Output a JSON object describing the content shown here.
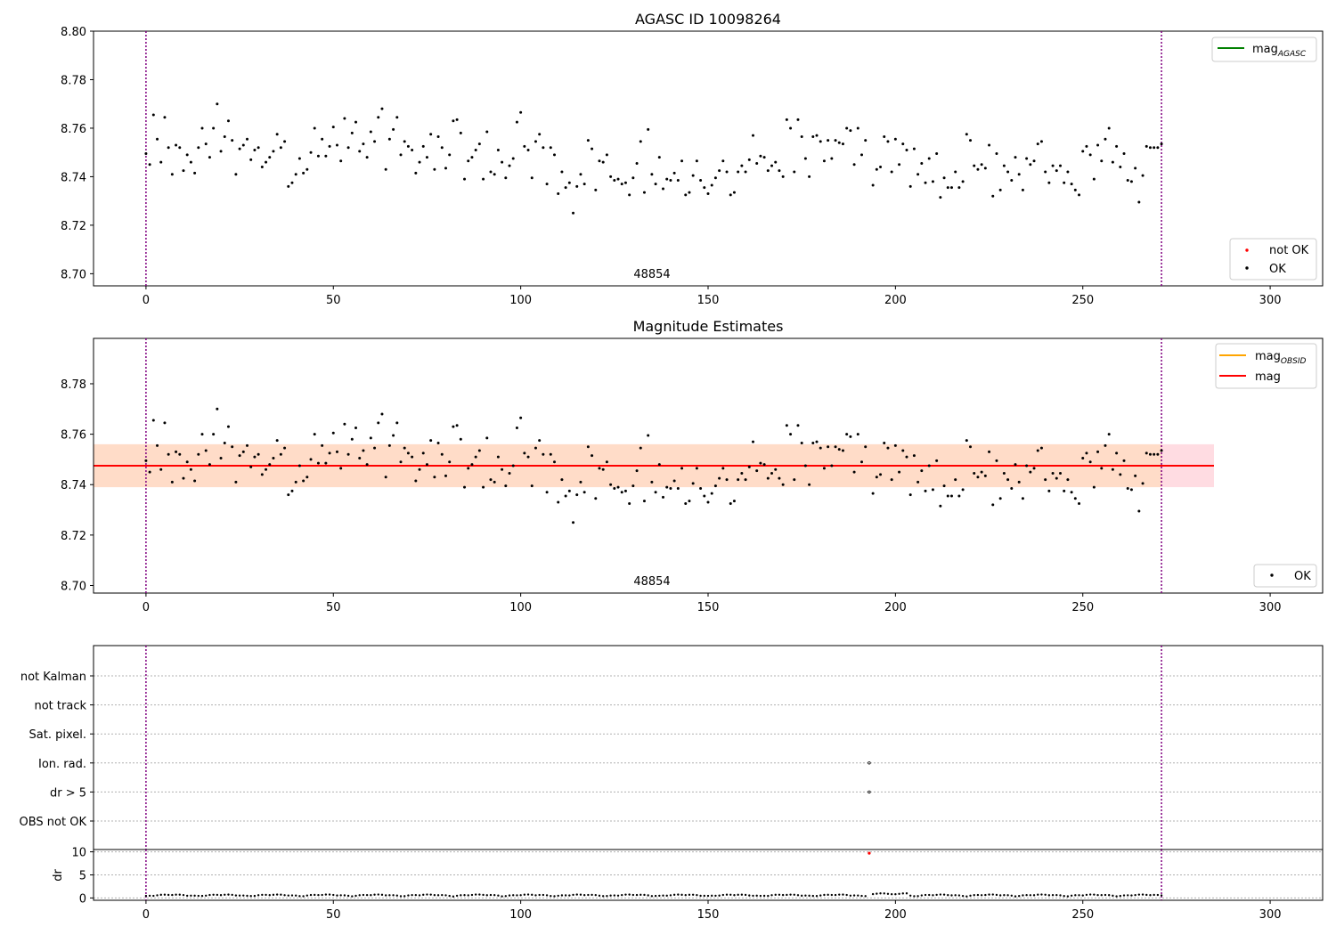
{
  "chart_data": [
    {
      "type": "scatter",
      "title": "AGASC ID 10098264",
      "annotation": "48854",
      "xlim": [
        -14,
        314
      ],
      "ylim": [
        8.695,
        8.8
      ],
      "xticks": [
        0,
        50,
        100,
        150,
        200,
        250,
        300
      ],
      "yticks": [
        8.7,
        8.72,
        8.74,
        8.76,
        8.78,
        8.8
      ],
      "ytick_labels": [
        "8.70",
        "8.72",
        "8.74",
        "8.76",
        "8.78",
        "8.80"
      ],
      "vlines": [
        0,
        271
      ],
      "legend_lines": [
        {
          "label": "mag",
          "sub": "AGASC",
          "color": "#008000"
        }
      ],
      "legend_points": [
        {
          "label": "not OK",
          "color": "#ff0000"
        },
        {
          "label": "OK",
          "color": "#000000"
        }
      ],
      "series": "mag_points",
      "grid": false
    },
    {
      "type": "scatter",
      "title": "Magnitude Estimates",
      "annotation": "48854",
      "xlim": [
        -14,
        314
      ],
      "ylim": [
        8.697,
        8.798
      ],
      "xticks": [
        0,
        50,
        100,
        150,
        200,
        250,
        300
      ],
      "yticks": [
        8.7,
        8.72,
        8.74,
        8.76,
        8.78
      ],
      "ytick_labels": [
        "8.70",
        "8.72",
        "8.74",
        "8.76",
        "8.78"
      ],
      "vlines": [
        0,
        271
      ],
      "mean_mag": 8.7475,
      "band": [
        8.739,
        8.756
      ],
      "band_x": [
        -14,
        285
      ],
      "legend_lines": [
        {
          "label": "mag",
          "sub": "OBSID",
          "color": "#ffa500"
        },
        {
          "label": "mag",
          "sub": "",
          "color": "#ff0000"
        }
      ],
      "legend_points": [
        {
          "label": "OK",
          "color": "#000000"
        }
      ],
      "series": "mag_points",
      "grid": false
    },
    {
      "type": "scatter",
      "flags": [
        "not Kalman",
        "not track",
        "Sat. pixel.",
        "Ion. rad.",
        "dr > 5",
        "OBS not OK"
      ],
      "flag_points": [
        {
          "flag": "Ion. rad.",
          "x": 193
        },
        {
          "flag": "dr > 5",
          "x": 193
        }
      ],
      "xlim": [
        -14,
        314
      ],
      "xticks": [
        0,
        50,
        100,
        150,
        200,
        250,
        300
      ],
      "vlines": [
        0,
        271
      ],
      "grid": true
    },
    {
      "type": "scatter",
      "ylabel": "dr",
      "ylim": [
        -0.5,
        10.5
      ],
      "yticks": [
        0,
        5,
        10
      ],
      "ytick_labels": [
        "0",
        "5",
        "10"
      ],
      "xlim": [
        -14,
        314
      ],
      "xticks": [
        0,
        50,
        100,
        150,
        200,
        250,
        300
      ],
      "xtick_labels": [
        "0",
        "50",
        "100",
        "150",
        "200",
        "250",
        "300"
      ],
      "outlier": {
        "x": 193,
        "y": 9.7
      },
      "vlines": [
        0,
        271
      ],
      "grid": true
    }
  ],
  "mag_points": [
    [
      0,
      8.7495
    ],
    [
      1,
      8.745
    ],
    [
      2,
      8.7655
    ],
    [
      3,
      8.7555
    ],
    [
      4,
      8.746
    ],
    [
      5,
      8.7645
    ],
    [
      6,
      8.752
    ],
    [
      7,
      8.741
    ],
    [
      8,
      8.753
    ],
    [
      9,
      8.752
    ],
    [
      10,
      8.7425
    ],
    [
      11,
      8.749
    ],
    [
      12,
      8.746
    ],
    [
      13,
      8.7415
    ],
    [
      14,
      8.752
    ],
    [
      15,
      8.76
    ],
    [
      16,
      8.7535
    ],
    [
      17,
      8.748
    ],
    [
      18,
      8.76
    ],
    [
      19,
      8.77
    ],
    [
      20,
      8.7505
    ],
    [
      21,
      8.7565
    ],
    [
      22,
      8.763
    ],
    [
      23,
      8.755
    ],
    [
      24,
      8.741
    ],
    [
      25,
      8.7515
    ],
    [
      26,
      8.753
    ],
    [
      27,
      8.7555
    ],
    [
      28,
      8.747
    ],
    [
      29,
      8.751
    ],
    [
      30,
      8.752
    ],
    [
      31,
      8.744
    ],
    [
      32,
      8.746
    ],
    [
      33,
      8.748
    ],
    [
      34,
      8.7505
    ],
    [
      35,
      8.7575
    ],
    [
      36,
      8.752
    ],
    [
      37,
      8.7545
    ],
    [
      38,
      8.736
    ],
    [
      39,
      8.7375
    ],
    [
      40,
      8.741
    ],
    [
      41,
      8.7475
    ],
    [
      42,
      8.7415
    ],
    [
      43,
      8.743
    ],
    [
      44,
      8.75
    ],
    [
      45,
      8.76
    ],
    [
      46,
      8.7485
    ],
    [
      47,
      8.7555
    ],
    [
      48,
      8.7485
    ],
    [
      49,
      8.7525
    ],
    [
      50,
      8.7605
    ],
    [
      51,
      8.753
    ],
    [
      52,
      8.7465
    ],
    [
      53,
      8.764
    ],
    [
      54,
      8.752
    ],
    [
      55,
      8.758
    ],
    [
      56,
      8.7625
    ],
    [
      57,
      8.7505
    ],
    [
      58,
      8.7535
    ],
    [
      59,
      8.748
    ],
    [
      60,
      8.7585
    ],
    [
      61,
      8.7545
    ],
    [
      62,
      8.7645
    ],
    [
      63,
      8.768
    ],
    [
      64,
      8.743
    ],
    [
      65,
      8.7555
    ],
    [
      66,
      8.7595
    ],
    [
      67,
      8.7645
    ],
    [
      68,
      8.749
    ],
    [
      69,
      8.7545
    ],
    [
      70,
      8.7525
    ],
    [
      71,
      8.751
    ],
    [
      72,
      8.7415
    ],
    [
      73,
      8.746
    ],
    [
      74,
      8.7525
    ],
    [
      75,
      8.748
    ],
    [
      76,
      8.7575
    ],
    [
      77,
      8.743
    ],
    [
      78,
      8.7565
    ],
    [
      79,
      8.752
    ],
    [
      80,
      8.7435
    ],
    [
      81,
      8.749
    ],
    [
      82,
      8.763
    ],
    [
      83,
      8.7635
    ],
    [
      84,
      8.758
    ],
    [
      85,
      8.739
    ],
    [
      86,
      8.7465
    ],
    [
      87,
      8.748
    ],
    [
      88,
      8.751
    ],
    [
      89,
      8.7535
    ],
    [
      90,
      8.739
    ],
    [
      91,
      8.7585
    ],
    [
      92,
      8.742
    ],
    [
      93,
      8.741
    ],
    [
      94,
      8.751
    ],
    [
      95,
      8.746
    ],
    [
      96,
      8.7395
    ],
    [
      97,
      8.7445
    ],
    [
      98,
      8.7475
    ],
    [
      99,
      8.7625
    ],
    [
      100,
      8.7665
    ],
    [
      101,
      8.7525
    ],
    [
      102,
      8.751
    ],
    [
      103,
      8.7395
    ],
    [
      104,
      8.7545
    ],
    [
      105,
      8.7575
    ],
    [
      106,
      8.752
    ],
    [
      107,
      8.737
    ],
    [
      108,
      8.752
    ],
    [
      109,
      8.749
    ],
    [
      110,
      8.733
    ],
    [
      111,
      8.742
    ],
    [
      112,
      8.7355
    ],
    [
      113,
      8.7375
    ],
    [
      114,
      8.725
    ],
    [
      115,
      8.736
    ],
    [
      116,
      8.741
    ],
    [
      117,
      8.737
    ],
    [
      118,
      8.755
    ],
    [
      119,
      8.7515
    ],
    [
      120,
      8.7345
    ],
    [
      121,
      8.7465
    ],
    [
      122,
      8.746
    ],
    [
      123,
      8.749
    ],
    [
      124,
      8.74
    ],
    [
      125,
      8.7385
    ],
    [
      126,
      8.739
    ],
    [
      127,
      8.737
    ],
    [
      128,
      8.7375
    ],
    [
      129,
      8.7325
    ],
    [
      130,
      8.7395
    ],
    [
      131,
      8.7455
    ],
    [
      132,
      8.7545
    ],
    [
      133,
      8.7335
    ],
    [
      134,
      8.7595
    ],
    [
      135,
      8.741
    ],
    [
      136,
      8.737
    ],
    [
      137,
      8.748
    ],
    [
      138,
      8.735
    ],
    [
      139,
      8.739
    ],
    [
      140,
      8.7385
    ],
    [
      141,
      8.7415
    ],
    [
      142,
      8.7385
    ],
    [
      143,
      8.7465
    ],
    [
      144,
      8.7325
    ],
    [
      145,
      8.7335
    ],
    [
      146,
      8.7405
    ],
    [
      147,
      8.7465
    ],
    [
      148,
      8.7385
    ],
    [
      149,
      8.7355
    ],
    [
      150,
      8.733
    ],
    [
      151,
      8.7365
    ],
    [
      152,
      8.7395
    ],
    [
      153,
      8.7425
    ],
    [
      154,
      8.7465
    ],
    [
      155,
      8.742
    ],
    [
      156,
      8.7325
    ],
    [
      157,
      8.7335
    ],
    [
      158,
      8.742
    ],
    [
      159,
      8.7445
    ],
    [
      160,
      8.742
    ],
    [
      161,
      8.747
    ],
    [
      162,
      8.757
    ],
    [
      163,
      8.7455
    ],
    [
      164,
      8.7485
    ],
    [
      165,
      8.748
    ],
    [
      166,
      8.7425
    ],
    [
      167,
      8.7445
    ],
    [
      168,
      8.746
    ],
    [
      169,
      8.7425
    ],
    [
      170,
      8.74
    ],
    [
      171,
      8.7635
    ],
    [
      172,
      8.76
    ],
    [
      173,
      8.742
    ],
    [
      174,
      8.7635
    ],
    [
      175,
      8.7565
    ],
    [
      176,
      8.7475
    ],
    [
      177,
      8.74
    ],
    [
      178,
      8.7565
    ],
    [
      179,
      8.757
    ],
    [
      180,
      8.7545
    ],
    [
      181,
      8.7465
    ],
    [
      182,
      8.755
    ],
    [
      183,
      8.7475
    ],
    [
      184,
      8.755
    ],
    [
      185,
      8.754
    ],
    [
      186,
      8.7535
    ],
    [
      187,
      8.76
    ],
    [
      188,
      8.759
    ],
    [
      189,
      8.745
    ],
    [
      190,
      8.76
    ],
    [
      191,
      8.749
    ],
    [
      192,
      8.755
    ],
    [
      194,
      8.7365
    ],
    [
      195,
      8.743
    ],
    [
      196,
      8.744
    ],
    [
      197,
      8.7565
    ],
    [
      198,
      8.7545
    ],
    [
      199,
      8.742
    ],
    [
      200,
      8.7555
    ],
    [
      201,
      8.745
    ],
    [
      202,
      8.7535
    ],
    [
      203,
      8.751
    ],
    [
      204,
      8.736
    ],
    [
      205,
      8.7515
    ],
    [
      206,
      8.741
    ],
    [
      207,
      8.7455
    ],
    [
      208,
      8.7375
    ],
    [
      209,
      8.7475
    ],
    [
      210,
      8.738
    ],
    [
      211,
      8.7495
    ],
    [
      212,
      8.7315
    ],
    [
      213,
      8.7395
    ],
    [
      214,
      8.7355
    ],
    [
      215,
      8.7355
    ],
    [
      216,
      8.742
    ],
    [
      217,
      8.7355
    ],
    [
      218,
      8.738
    ],
    [
      219,
      8.7575
    ],
    [
      220,
      8.755
    ],
    [
      221,
      8.7445
    ],
    [
      222,
      8.743
    ],
    [
      223,
      8.745
    ],
    [
      224,
      8.7435
    ],
    [
      225,
      8.753
    ],
    [
      226,
      8.732
    ],
    [
      227,
      8.7495
    ],
    [
      228,
      8.7345
    ],
    [
      229,
      8.7445
    ],
    [
      230,
      8.742
    ],
    [
      231,
      8.7385
    ],
    [
      232,
      8.748
    ],
    [
      233,
      8.741
    ],
    [
      234,
      8.7345
    ],
    [
      235,
      8.7475
    ],
    [
      236,
      8.745
    ],
    [
      237,
      8.7465
    ],
    [
      238,
      8.7535
    ],
    [
      239,
      8.7545
    ],
    [
      240,
      8.742
    ],
    [
      241,
      8.7375
    ],
    [
      242,
      8.7445
    ],
    [
      243,
      8.7425
    ],
    [
      244,
      8.7445
    ],
    [
      245,
      8.7375
    ],
    [
      246,
      8.742
    ],
    [
      247,
      8.737
    ],
    [
      248,
      8.7345
    ],
    [
      249,
      8.7325
    ],
    [
      250,
      8.7505
    ],
    [
      251,
      8.7525
    ],
    [
      252,
      8.749
    ],
    [
      253,
      8.739
    ],
    [
      254,
      8.753
    ],
    [
      255,
      8.7465
    ],
    [
      256,
      8.7555
    ],
    [
      257,
      8.76
    ],
    [
      258,
      8.746
    ],
    [
      259,
      8.7525
    ],
    [
      260,
      8.744
    ],
    [
      261,
      8.7495
    ],
    [
      262,
      8.7385
    ],
    [
      263,
      8.738
    ],
    [
      264,
      8.7435
    ],
    [
      265,
      8.7295
    ],
    [
      266,
      8.7405
    ],
    [
      267,
      8.7525
    ],
    [
      268,
      8.752
    ],
    [
      269,
      8.752
    ],
    [
      270,
      8.752
    ],
    [
      271,
      8.7535
    ]
  ]
}
